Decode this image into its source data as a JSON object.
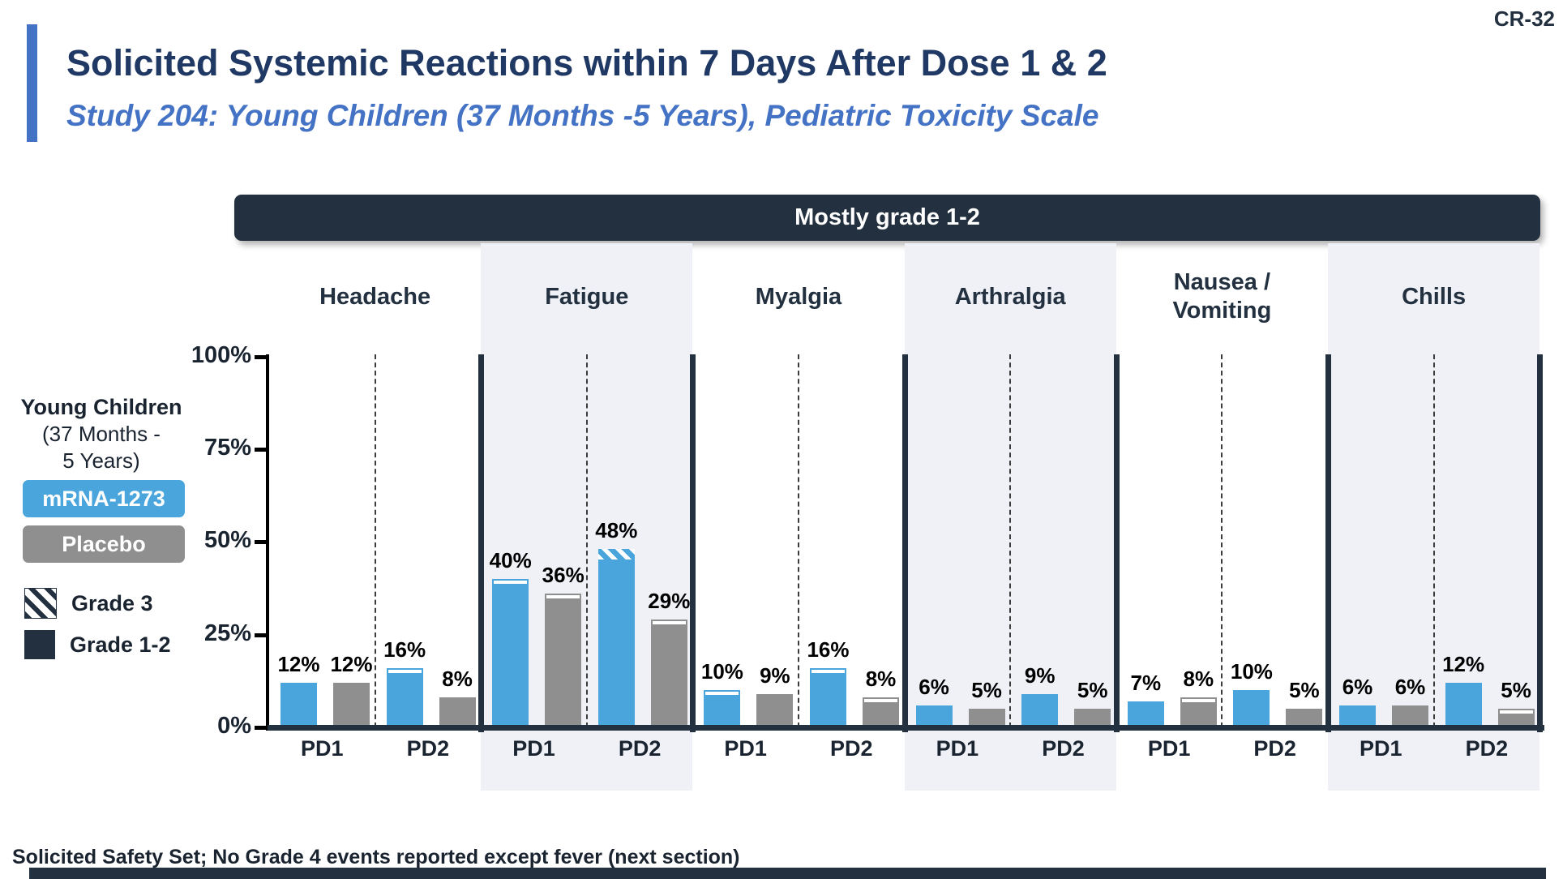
{
  "slide": {
    "code": "CR-32",
    "title": "Solicited Systemic Reactions within 7 Days After Dose 1 & 2",
    "subtitle": "Study 204: Young Children (37 Months -5 Years), Pediatric Toxicity Scale",
    "footer": "Solicited Safety Set; No Grade 4 events reported except fever (next section)"
  },
  "colors": {
    "mrna_blue": "#4AA5DC",
    "placebo_gray": "#8F8F8F",
    "dark_navy": "#22303F",
    "title_navy": "#1F3864",
    "subtitle_blue": "#4472C4",
    "band": "#EFF1F7"
  },
  "legend": {
    "population_line1": "Young Children",
    "population_line2": "(37 Months -",
    "population_line3": "5 Years)",
    "series": [
      {
        "label": "mRNA-1273",
        "color": "#4AA5DC"
      },
      {
        "label": "Placebo",
        "color": "#8F8F8F"
      }
    ],
    "grades": [
      {
        "label": "Grade 3",
        "style": "hatch"
      },
      {
        "label": "Grade 1-2",
        "style": "solid"
      }
    ]
  },
  "chart_data": {
    "type": "bar",
    "title": "Mostly grade 1-2",
    "ylim": [
      0,
      100
    ],
    "series": [
      "mRNA-1273",
      "Placebo"
    ],
    "axis": {
      "ticks": [
        {
          "label": "0%",
          "value": 0
        },
        {
          "label": "25%",
          "value": 25
        },
        {
          "label": "50%",
          "value": 50
        },
        {
          "label": "75%",
          "value": 75
        },
        {
          "label": "100%",
          "value": 100
        }
      ]
    },
    "categories": [
      {
        "name": "Headache",
        "shaded": false,
        "groups": [
          {
            "label": "PD1",
            "values": [
              {
                "pct": 12,
                "grade3": "none"
              },
              {
                "pct": 12,
                "grade3": "none"
              }
            ]
          },
          {
            "label": "PD2",
            "values": [
              {
                "pct": 16,
                "grade3": "sliver"
              },
              {
                "pct": 8,
                "grade3": "none"
              }
            ]
          }
        ]
      },
      {
        "name": "Fatigue",
        "shaded": true,
        "groups": [
          {
            "label": "PD1",
            "values": [
              {
                "pct": 40,
                "grade3": "sliver"
              },
              {
                "pct": 36,
                "grade3": "sliver"
              }
            ]
          },
          {
            "label": "PD2",
            "values": [
              {
                "pct": 48,
                "grade3": "hatch"
              },
              {
                "pct": 29,
                "grade3": "sliver"
              }
            ]
          }
        ]
      },
      {
        "name": "Myalgia",
        "shaded": false,
        "groups": [
          {
            "label": "PD1",
            "values": [
              {
                "pct": 10,
                "grade3": "sliver"
              },
              {
                "pct": 9,
                "grade3": "none"
              }
            ]
          },
          {
            "label": "PD2",
            "values": [
              {
                "pct": 16,
                "grade3": "sliver"
              },
              {
                "pct": 8,
                "grade3": "sliver"
              }
            ]
          }
        ]
      },
      {
        "name": "Arthralgia",
        "shaded": true,
        "groups": [
          {
            "label": "PD1",
            "values": [
              {
                "pct": 6,
                "grade3": "none"
              },
              {
                "pct": 5,
                "grade3": "none"
              }
            ]
          },
          {
            "label": "PD2",
            "values": [
              {
                "pct": 9,
                "grade3": "none"
              },
              {
                "pct": 5,
                "grade3": "none"
              }
            ]
          }
        ]
      },
      {
        "name": "Nausea /\nVomiting",
        "shaded": false,
        "groups": [
          {
            "label": "PD1",
            "values": [
              {
                "pct": 7,
                "grade3": "none"
              },
              {
                "pct": 8,
                "grade3": "sliver"
              }
            ]
          },
          {
            "label": "PD2",
            "values": [
              {
                "pct": 10,
                "grade3": "none"
              },
              {
                "pct": 5,
                "grade3": "none"
              }
            ]
          }
        ]
      },
      {
        "name": "Chills",
        "shaded": true,
        "groups": [
          {
            "label": "PD1",
            "values": [
              {
                "pct": 6,
                "grade3": "none"
              },
              {
                "pct": 6,
                "grade3": "none"
              }
            ]
          },
          {
            "label": "PD2",
            "values": [
              {
                "pct": 12,
                "grade3": "none"
              },
              {
                "pct": 5,
                "grade3": "sliver"
              }
            ]
          }
        ]
      }
    ]
  }
}
